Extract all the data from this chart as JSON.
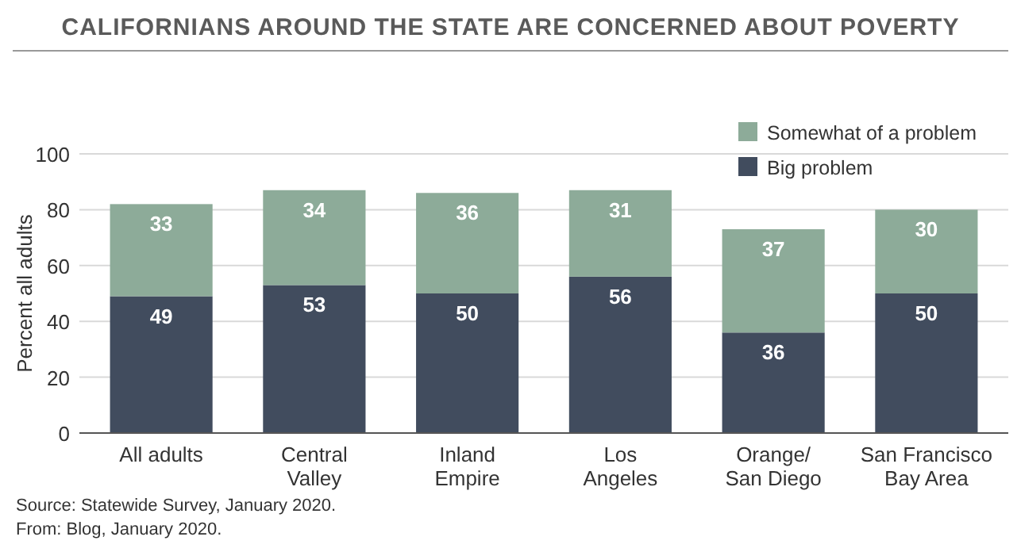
{
  "chart_data": {
    "type": "bar",
    "stacked": true,
    "title": "CALIFORNIANS AROUND THE STATE ARE CONCERNED ABOUT POVERTY",
    "ylabel": "Percent all adults",
    "categories": [
      "All adults",
      "Central\nValley",
      "Inland\nEmpire",
      "Los\nAngeles",
      "Orange/\nSan Diego",
      "San Francisco\nBay Area"
    ],
    "series": [
      {
        "name": "Big problem",
        "color": "#414c5e",
        "values": [
          49,
          53,
          50,
          56,
          36,
          50
        ]
      },
      {
        "name": "Somewhat of a problem",
        "color": "#8dab99",
        "values": [
          33,
          34,
          36,
          31,
          37,
          30
        ]
      }
    ],
    "ylim": [
      0,
      100
    ],
    "yticks": [
      0,
      20,
      40,
      60,
      80,
      100
    ],
    "grid": "y",
    "legend": "top right",
    "data_labels": true,
    "annotations": [
      "Source: Statewide Survey, January 2020.",
      "From: Blog, January 2020."
    ]
  }
}
